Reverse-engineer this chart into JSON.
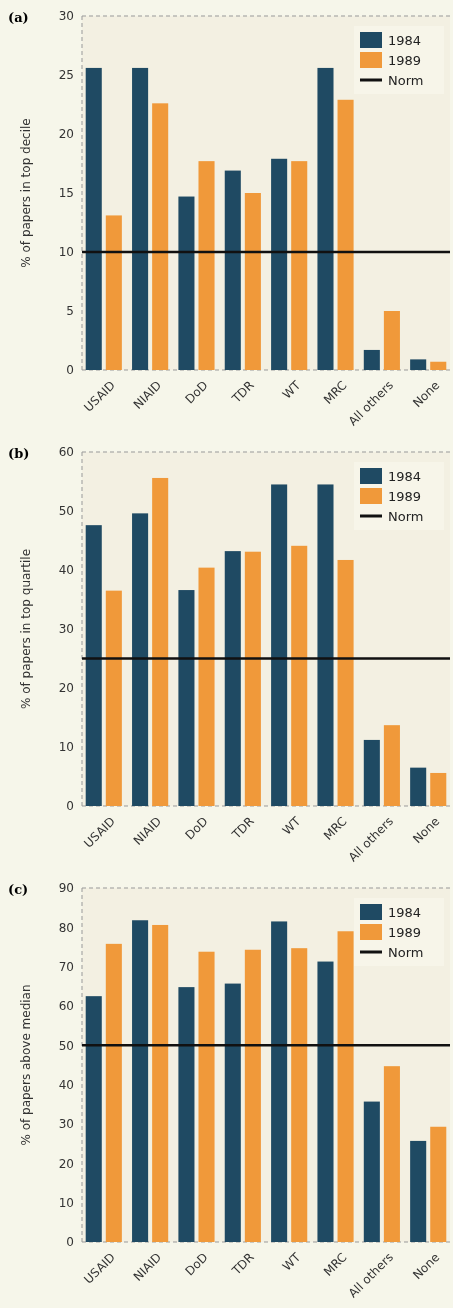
{
  "chart_data": [
    {
      "type": "bar",
      "title": "(a)",
      "ylabel": "% of papers in top decile",
      "categories": [
        "USAID",
        "NIAID",
        "DoD",
        "TDR",
        "WT",
        "MRC",
        "All others",
        "None"
      ],
      "series": [
        {
          "name": "1984",
          "color": "#1f4a63",
          "values": [
            25.6,
            25.6,
            14.7,
            16.9,
            17.9,
            25.6,
            1.7,
            0.9
          ]
        },
        {
          "name": "1989",
          "color": "#f0993a",
          "values": [
            13.1,
            22.6,
            17.7,
            15.0,
            17.7,
            22.9,
            5.0,
            0.7
          ]
        }
      ],
      "ylim": [
        0,
        30
      ],
      "yticks": [
        0,
        5,
        10,
        15,
        20,
        25,
        30
      ],
      "ref_lines": [
        {
          "axis": "y",
          "value": 10,
          "label": "Norm",
          "color": "#111111"
        }
      ],
      "legend": "top right",
      "grid": false
    },
    {
      "type": "bar",
      "title": "(b)",
      "ylabel": "% of papers in top quartile",
      "categories": [
        "USAID",
        "NIAID",
        "DoD",
        "TDR",
        "WT",
        "MRC",
        "All others",
        "None"
      ],
      "series": [
        {
          "name": "1984",
          "color": "#1f4a63",
          "values": [
            47.6,
            49.6,
            36.6,
            43.2,
            54.5,
            54.5,
            11.2,
            6.5
          ]
        },
        {
          "name": "1989",
          "color": "#f0993a",
          "values": [
            36.5,
            55.6,
            40.4,
            43.1,
            44.1,
            41.7,
            13.7,
            5.6
          ]
        }
      ],
      "ylim": [
        0,
        60
      ],
      "yticks": [
        0,
        10,
        20,
        30,
        40,
        50,
        60
      ],
      "ref_lines": [
        {
          "axis": "y",
          "value": 25,
          "label": "Norm",
          "color": "#111111"
        }
      ],
      "legend": "top right",
      "grid": false
    },
    {
      "type": "bar",
      "title": "(c)",
      "ylabel": "% of papers above median",
      "categories": [
        "USAID",
        "NIAID",
        "DoD",
        "TDR",
        "WT",
        "MRC",
        "All others",
        "None"
      ],
      "series": [
        {
          "name": "1984",
          "color": "#1f4a63",
          "values": [
            62.5,
            81.8,
            64.8,
            65.7,
            81.5,
            71.3,
            35.7,
            25.7
          ]
        },
        {
          "name": "1989",
          "color": "#f0993a",
          "values": [
            75.8,
            80.6,
            73.8,
            74.3,
            74.7,
            79.0,
            44.7,
            29.3
          ]
        }
      ],
      "ylim": [
        0,
        90
      ],
      "yticks": [
        0,
        10,
        20,
        30,
        40,
        50,
        60,
        70,
        80,
        90
      ],
      "ref_lines": [
        {
          "axis": "y",
          "value": 50,
          "label": "Norm",
          "color": "#111111"
        }
      ],
      "legend": "top right",
      "grid": false
    }
  ]
}
